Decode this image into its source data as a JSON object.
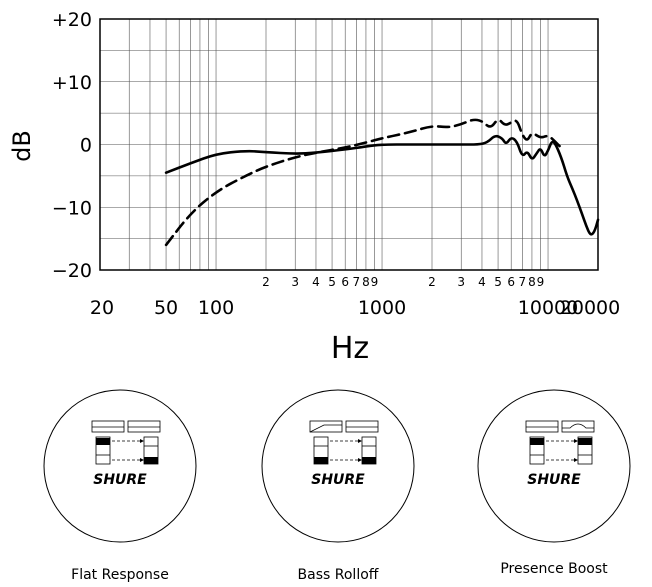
{
  "chart_data": {
    "type": "line",
    "xlabel": "Hz",
    "ylabel": "dB",
    "x_scale": "log",
    "xlim": [
      20,
      20000
    ],
    "ylim": [
      -20,
      20
    ],
    "grid": true,
    "y_ticks": [
      20,
      10,
      0,
      -10,
      -20
    ],
    "y_tick_labels": [
      "+20",
      "+10",
      "0",
      "−10",
      "−20"
    ],
    "x_major_ticks": [
      20,
      50,
      100,
      1000,
      10000,
      20000
    ],
    "x_major_labels": [
      "20",
      "50",
      "100",
      "1000",
      "10000",
      "20000"
    ],
    "x_minor_ticks": [
      200,
      300,
      400,
      500,
      600,
      700,
      800,
      900,
      2000,
      3000,
      4000,
      5000,
      6000,
      7000,
      8000,
      9000
    ],
    "x_minor_labels": [
      "2",
      "3",
      "4",
      "5",
      "6",
      "7",
      "8",
      "9",
      "2",
      "3",
      "4",
      "5",
      "6",
      "7",
      "8",
      "9"
    ],
    "series": [
      {
        "style": "solid",
        "x": [
          50,
          70,
          100,
          150,
          200,
          300,
          400,
          600,
          800,
          1000,
          1500,
          2000,
          3000,
          3800,
          4300,
          4800,
          5300,
          5600,
          6000,
          6500,
          7000,
          7500,
          8000,
          8500,
          9000,
          9500,
          10000,
          10500,
          11000,
          12000,
          13000,
          14000,
          15000,
          16000,
          17000,
          18000,
          19000,
          20000
        ],
        "y": [
          -4.5,
          -3,
          -1.5,
          -1,
          -1.2,
          -1.5,
          -1.3,
          -0.8,
          -0.3,
          0,
          0,
          0,
          0,
          0,
          0.3,
          1.5,
          1,
          0,
          1.2,
          0.5,
          -2,
          -1,
          -2.5,
          -1.5,
          -0.5,
          -2,
          -1,
          0.5,
          0.3,
          -2,
          -5,
          -7,
          -9,
          -11,
          -13,
          -14.5,
          -14,
          -12
        ]
      },
      {
        "style": "dashed",
        "x": [
          50,
          70,
          100,
          150,
          200,
          300,
          400,
          600,
          800,
          1000,
          1500,
          2000,
          2500,
          3000,
          3500,
          4000,
          4500,
          5000,
          5500,
          6000,
          6500,
          7000,
          7500,
          8000,
          9000,
          10000,
          11000,
          12000
        ],
        "y": [
          -16,
          -11,
          -7.5,
          -5,
          -3.5,
          -2,
          -1.3,
          -0.5,
          0.3,
          1,
          2,
          3,
          2.7,
          3.2,
          4,
          3.8,
          2.5,
          4.2,
          3,
          3.5,
          4,
          1.5,
          0.5,
          2,
          1,
          1.5,
          0.5,
          -0.5
        ]
      }
    ]
  },
  "modes": [
    {
      "label": "Flat Response",
      "logo": "SHURE",
      "eq_left": "flat-icon",
      "eq_right": "flat-icon"
    },
    {
      "label": "Bass Rolloff",
      "logo": "SHURE",
      "eq_left": "rolloff-icon",
      "eq_right": "flat-icon"
    },
    {
      "label": "Presence Boost",
      "logo": "SHURE",
      "eq_left": "flat-icon",
      "eq_right": "presence-bump-icon"
    }
  ]
}
